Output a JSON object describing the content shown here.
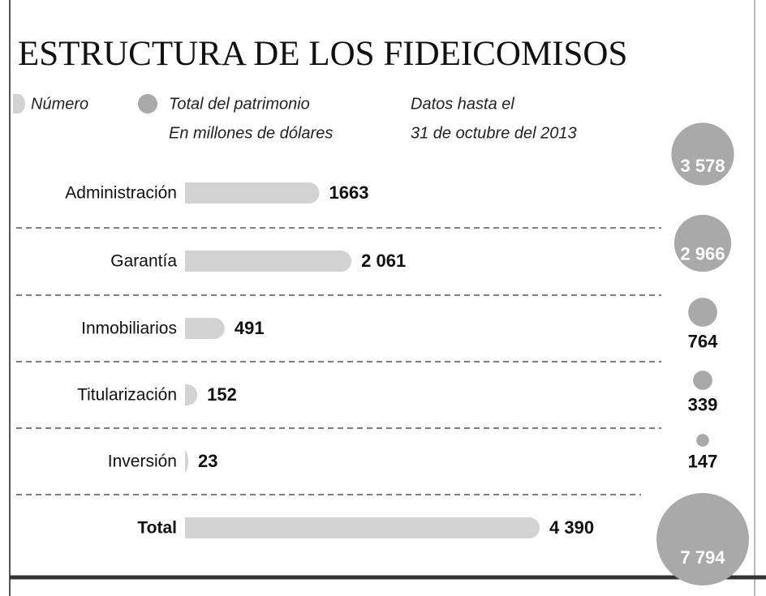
{
  "chart_data": {
    "type": "bar",
    "title": "ESTRUCTURA DE LOS FIDEICOMISOS",
    "unit": "En millones de dólares",
    "note": [
      "Datos hasta el",
      "31 de octubre del 2013"
    ],
    "categories": [
      "Administración",
      "Garantía",
      "Inmobiliarios",
      "Titularización",
      "Inversión",
      "Total"
    ],
    "series": [
      {
        "name": "Número",
        "color": "#d2d2d2",
        "values": [
          1663,
          2061,
          491,
          152,
          23,
          4390
        ],
        "value_labels": [
          "1663",
          "2 061",
          "491",
          "152",
          "23",
          "4 390"
        ]
      },
      {
        "name": "Total del patrimonio",
        "color": "#a9a9a9",
        "kind": "bubble",
        "values": [
          3578,
          2966,
          764,
          339,
          147,
          7794
        ],
        "value_labels": [
          "3 578",
          "2 966",
          "764",
          "339",
          "147",
          "7 794"
        ]
      }
    ]
  }
}
